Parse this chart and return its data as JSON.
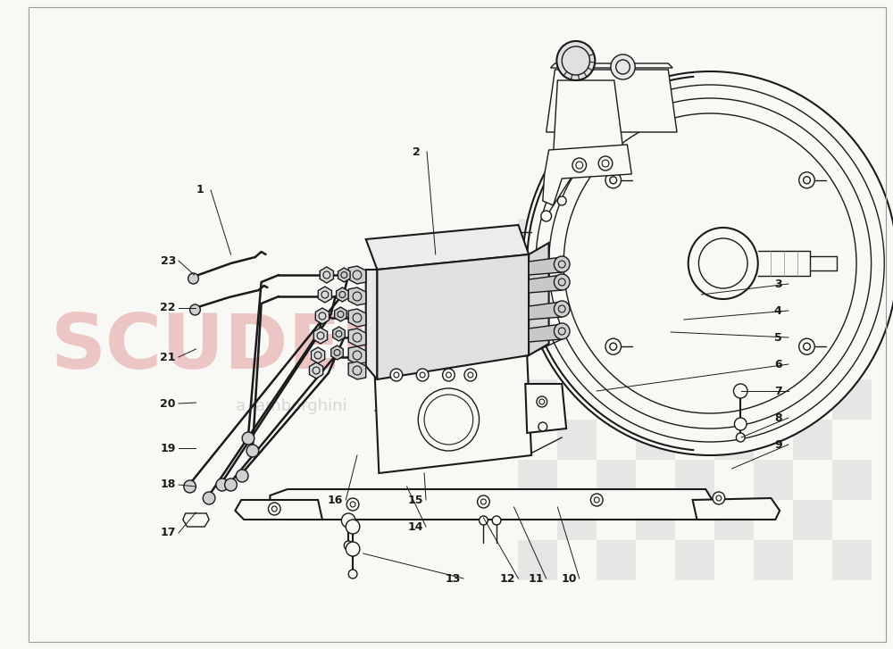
{
  "bg_color": "#F8F8F5",
  "line_color": "#1a1a1a",
  "check_color": "#d0d0d0",
  "watermark_red": "#cc3333",
  "watermark_gray": "#bbbbbb",
  "label_data": [
    [
      1,
      205,
      213,
      240,
      285
    ],
    [
      2,
      453,
      170,
      475,
      285
    ],
    [
      3,
      868,
      318,
      780,
      330
    ],
    [
      4,
      868,
      348,
      760,
      358
    ],
    [
      5,
      868,
      378,
      745,
      372
    ],
    [
      6,
      868,
      408,
      660,
      438
    ],
    [
      7,
      868,
      438,
      826,
      438
    ],
    [
      8,
      868,
      468,
      826,
      490
    ],
    [
      9,
      868,
      498,
      815,
      525
    ],
    [
      10,
      628,
      648,
      615,
      568
    ],
    [
      11,
      590,
      648,
      565,
      568
    ],
    [
      12,
      558,
      648,
      530,
      580
    ],
    [
      13,
      495,
      648,
      392,
      620
    ],
    [
      14,
      452,
      590,
      442,
      545
    ],
    [
      15,
      452,
      560,
      462,
      530
    ],
    [
      16,
      360,
      560,
      385,
      510
    ],
    [
      17,
      168,
      597,
      200,
      574
    ],
    [
      18,
      168,
      543,
      200,
      545
    ],
    [
      19,
      168,
      502,
      200,
      502
    ],
    [
      20,
      168,
      452,
      200,
      451
    ],
    [
      21,
      168,
      400,
      200,
      391
    ],
    [
      22,
      168,
      345,
      200,
      345
    ],
    [
      23,
      168,
      292,
      198,
      308
    ]
  ]
}
